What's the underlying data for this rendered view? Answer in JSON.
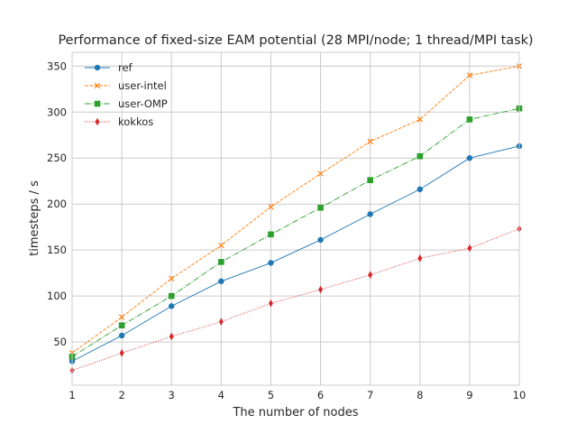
{
  "chart_data": {
    "type": "line",
    "title": "Performance of fixed-size EAM potential (28 MPI/node; 1 thread/MPI task)",
    "xlabel": "The number of nodes",
    "ylabel": "timesteps / s",
    "xlim": [
      1,
      10
    ],
    "ylim": [
      3,
      365
    ],
    "x": [
      1,
      2,
      3,
      4,
      5,
      6,
      7,
      8,
      9,
      10
    ],
    "xticks": [
      1,
      2,
      3,
      4,
      5,
      6,
      7,
      8,
      9,
      10
    ],
    "yticks": [
      50,
      100,
      150,
      200,
      250,
      300,
      350
    ],
    "grid": true,
    "legend_position": "upper-left",
    "series": [
      {
        "name": "ref",
        "values": [
          29,
          57,
          89,
          116,
          136,
          161,
          189,
          216,
          250,
          263
        ],
        "color": "#1f77b4",
        "linestyle": "solid",
        "marker": "circle"
      },
      {
        "name": "user-intel",
        "values": [
          38,
          77,
          119,
          155,
          197,
          233,
          268,
          292,
          340,
          350
        ],
        "color": "#ff7f0e",
        "linestyle": "dashed",
        "marker": "x"
      },
      {
        "name": "user-OMP",
        "values": [
          34,
          68,
          100,
          137,
          167,
          196,
          226,
          252,
          292,
          304
        ],
        "color": "#2ca02c",
        "linestyle": "dashdot",
        "marker": "square"
      },
      {
        "name": "kokkos",
        "values": [
          19,
          38,
          56,
          72,
          92,
          107,
          123,
          141,
          152,
          173
        ],
        "color": "#d62728",
        "linestyle": "dotted",
        "marker": "thin-diamond"
      }
    ]
  }
}
